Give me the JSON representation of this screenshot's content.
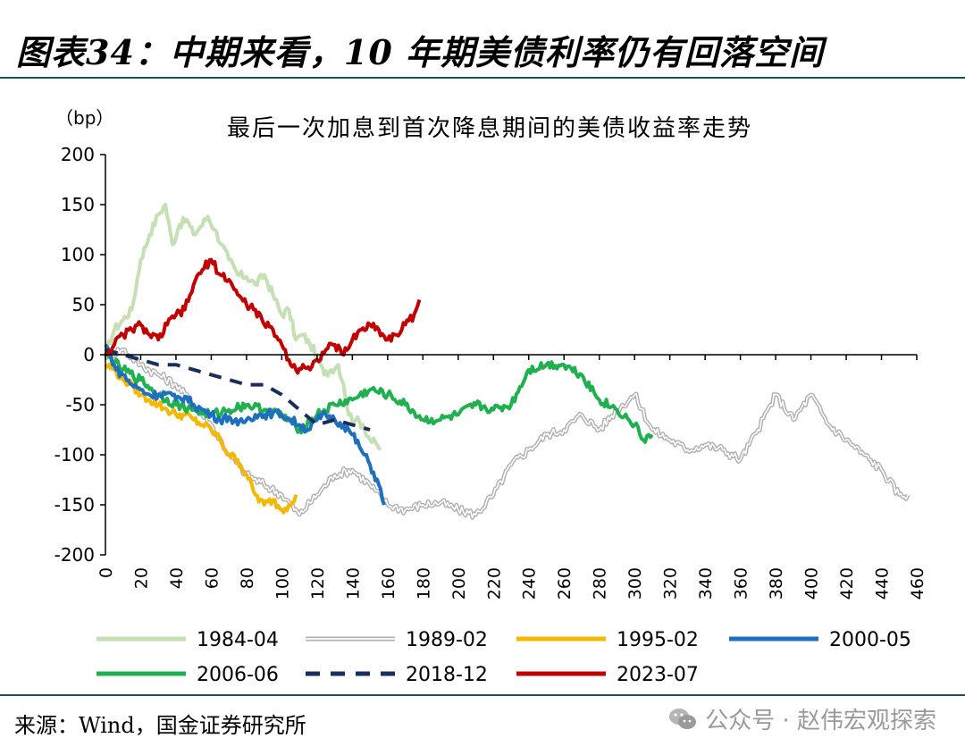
{
  "header": {
    "title": "图表34：中期来看，10 年期美债利率仍有回落空间"
  },
  "footer": {
    "source": "来源：Wind，国金证券研究所",
    "watermark": "公众号 · 赵伟宏观探索",
    "watermark_icon": "wechat-icon"
  },
  "chart_data": {
    "type": "line",
    "title": "最后一次加息到首次降息期间的美债收益率走势",
    "ylabel": "（bp）",
    "xlabel": "",
    "xlim": [
      0,
      460
    ],
    "ylim": [
      -200,
      200
    ],
    "x_ticks": [
      0,
      20,
      40,
      60,
      80,
      100,
      120,
      140,
      160,
      180,
      200,
      220,
      240,
      260,
      280,
      300,
      320,
      340,
      360,
      380,
      400,
      420,
      440,
      460
    ],
    "y_ticks": [
      200,
      150,
      100,
      50,
      0,
      -50,
      -100,
      -150,
      -200
    ],
    "grid": false,
    "legend": "bottom",
    "series": [
      {
        "name": "1984-04",
        "color": "#c5e0b4",
        "style": "solid",
        "x": [
          0,
          5,
          10,
          15,
          20,
          25,
          30,
          34,
          38,
          42,
          46,
          50,
          54,
          58,
          62,
          66,
          70,
          75,
          80,
          85,
          90,
          95,
          100,
          104,
          108,
          112,
          116,
          120,
          124,
          128,
          132,
          135,
          138,
          142,
          146,
          150,
          154,
          156
        ],
        "y": [
          0,
          25,
          35,
          45,
          95,
          120,
          140,
          150,
          110,
          130,
          135,
          120,
          128,
          138,
          125,
          110,
          95,
          80,
          78,
          70,
          80,
          60,
          40,
          45,
          15,
          20,
          10,
          0,
          -20,
          -15,
          -10,
          -30,
          -60,
          -65,
          -70,
          -85,
          -90,
          -95
        ]
      },
      {
        "name": "1989-02",
        "color": "#b0b0b0",
        "style": "double",
        "x": [
          0,
          10,
          20,
          30,
          40,
          50,
          60,
          70,
          80,
          90,
          100,
          110,
          120,
          130,
          140,
          150,
          160,
          170,
          180,
          190,
          200,
          210,
          220,
          230,
          240,
          250,
          260,
          270,
          280,
          290,
          300,
          310,
          320,
          330,
          340,
          350,
          360,
          370,
          380,
          390,
          400,
          410,
          420,
          430,
          440,
          450,
          455
        ],
        "y": [
          0,
          5,
          -10,
          -20,
          -30,
          -50,
          -70,
          -100,
          -120,
          -130,
          -140,
          -160,
          -140,
          -120,
          -115,
          -130,
          -150,
          -155,
          -150,
          -148,
          -155,
          -160,
          -140,
          -110,
          -95,
          -80,
          -75,
          -60,
          -75,
          -55,
          -40,
          -75,
          -85,
          -95,
          -90,
          -95,
          -105,
          -75,
          -40,
          -65,
          -40,
          -70,
          -85,
          -100,
          -115,
          -140,
          -140
        ]
      },
      {
        "name": "1995-02",
        "color": "#f5b800",
        "style": "solid",
        "x": [
          0,
          5,
          10,
          15,
          20,
          25,
          30,
          35,
          40,
          45,
          50,
          55,
          60,
          65,
          70,
          75,
          80,
          85,
          90,
          95,
          100,
          104,
          108
        ],
        "y": [
          -10,
          -15,
          -25,
          -30,
          -40,
          -45,
          -50,
          -55,
          -60,
          -60,
          -65,
          -70,
          -75,
          -85,
          -100,
          -105,
          -120,
          -140,
          -150,
          -145,
          -155,
          -150,
          -140
        ]
      },
      {
        "name": "2000-05",
        "color": "#1f6fbf",
        "style": "solid",
        "x": [
          0,
          3,
          6,
          10,
          15,
          20,
          25,
          30,
          35,
          40,
          45,
          50,
          55,
          60,
          65,
          70,
          75,
          80,
          85,
          90,
          95,
          100,
          105,
          110,
          115,
          120,
          125,
          130,
          135,
          140,
          145,
          150,
          155,
          158
        ],
        "y": [
          10,
          0,
          -15,
          -20,
          -30,
          -35,
          -40,
          -40,
          -38,
          -45,
          -42,
          -50,
          -55,
          -60,
          -65,
          -62,
          -70,
          -65,
          -60,
          -60,
          -58,
          -60,
          -65,
          -70,
          -75,
          -65,
          -60,
          -65,
          -70,
          -80,
          -95,
          -110,
          -130,
          -150
        ]
      },
      {
        "name": "2006-06",
        "color": "#20b050",
        "style": "solid",
        "x": [
          0,
          10,
          20,
          30,
          40,
          50,
          60,
          70,
          80,
          90,
          100,
          110,
          120,
          130,
          140,
          150,
          160,
          170,
          180,
          190,
          200,
          210,
          220,
          230,
          240,
          250,
          260,
          270,
          280,
          290,
          300,
          305,
          310
        ],
        "y": [
          0,
          -15,
          -25,
          -40,
          -50,
          -55,
          -60,
          -55,
          -50,
          -55,
          -60,
          -75,
          -60,
          -50,
          -45,
          -35,
          -40,
          -50,
          -65,
          -65,
          -60,
          -50,
          -55,
          -50,
          -15,
          -10,
          -10,
          -20,
          -45,
          -55,
          -70,
          -85,
          -80
        ]
      },
      {
        "name": "2018-12",
        "color": "#1a2e5e",
        "style": "dashed",
        "x": [
          0,
          10,
          20,
          30,
          40,
          50,
          60,
          70,
          80,
          90,
          100,
          110,
          120,
          130,
          140,
          150
        ],
        "y": [
          5,
          0,
          -5,
          -10,
          -10,
          -15,
          -20,
          -25,
          -30,
          -30,
          -40,
          -55,
          -70,
          -65,
          -70,
          -75
        ]
      },
      {
        "name": "2023-07",
        "color": "#c00000",
        "style": "solid",
        "x": [
          0,
          5,
          10,
          15,
          20,
          25,
          30,
          35,
          40,
          45,
          50,
          55,
          60,
          65,
          70,
          75,
          80,
          85,
          90,
          95,
          100,
          104,
          108,
          112,
          116,
          120,
          125,
          130,
          135,
          140,
          145,
          150,
          155,
          160,
          165,
          170,
          175,
          178
        ],
        "y": [
          0,
          10,
          20,
          25,
          30,
          20,
          15,
          30,
          40,
          45,
          70,
          85,
          95,
          80,
          75,
          60,
          50,
          45,
          30,
          25,
          10,
          -5,
          -15,
          -10,
          -15,
          -5,
          5,
          10,
          0,
          15,
          25,
          30,
          25,
          15,
          20,
          30,
          40,
          55
        ]
      }
    ]
  }
}
